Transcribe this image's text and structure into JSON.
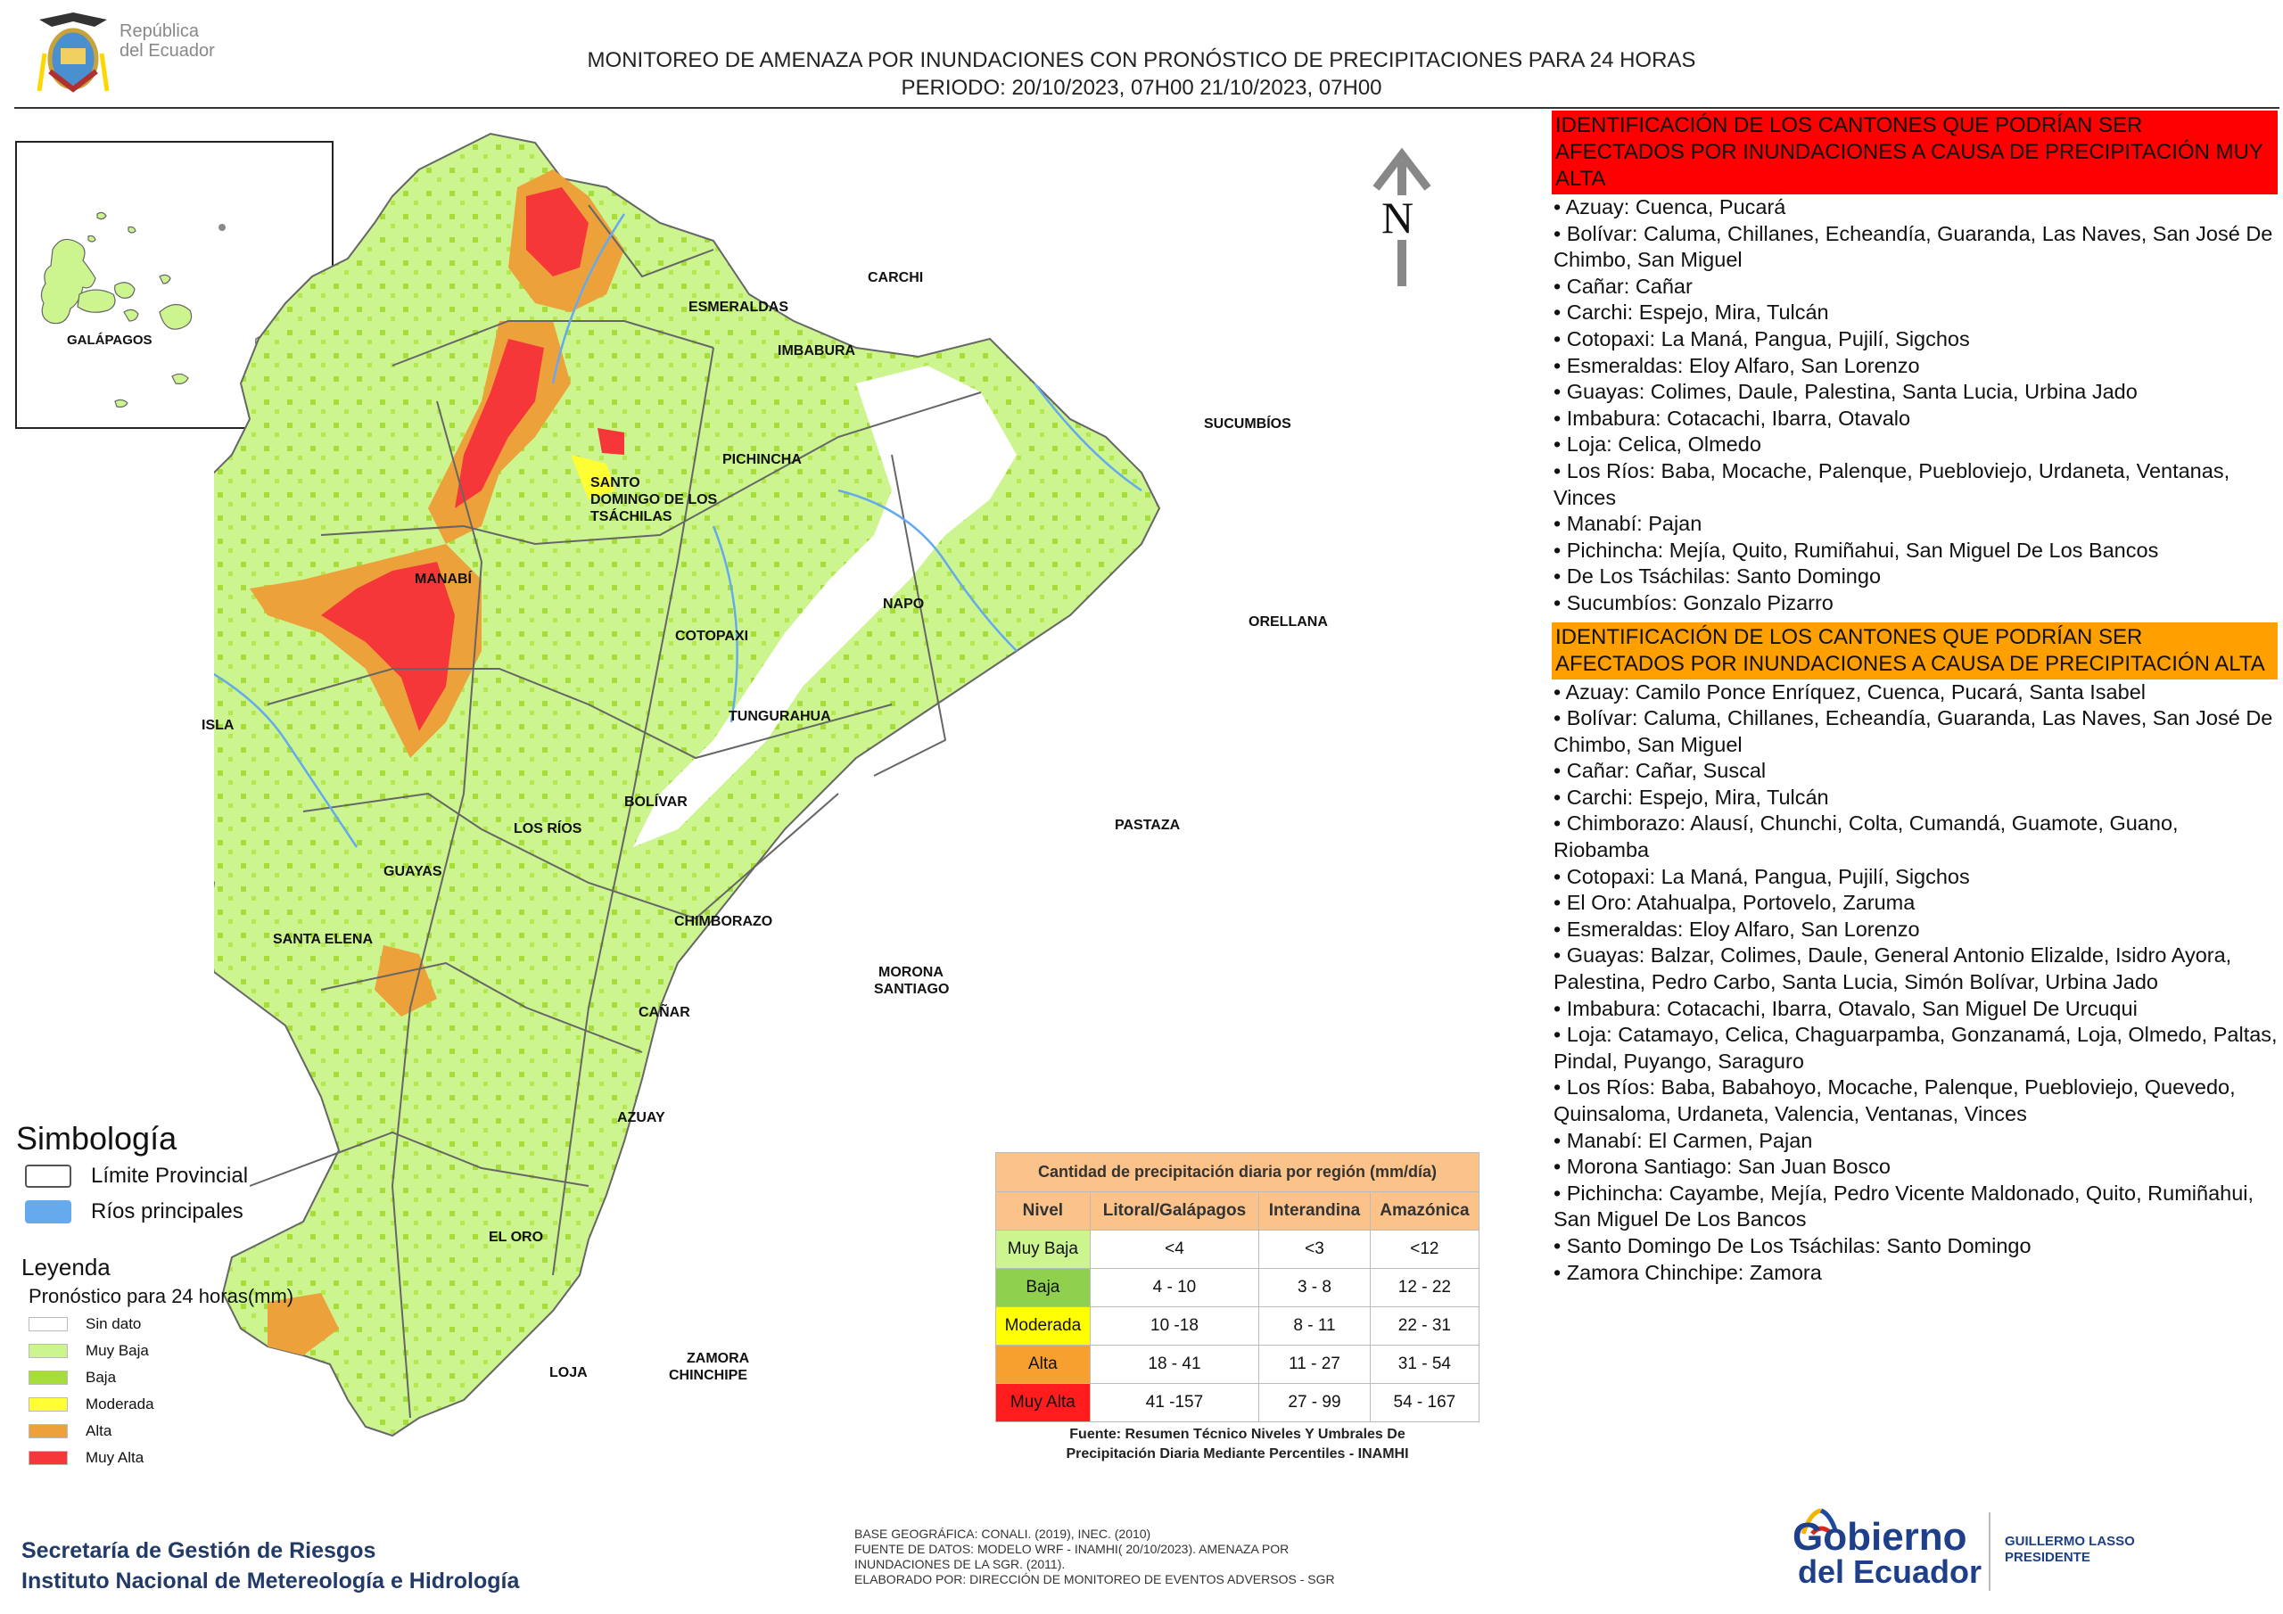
{
  "header": {
    "logo_text_line1": "República",
    "logo_text_line2": "del Ecuador",
    "title": "MONITOREO DE AMENAZA POR INUNDACIONES  CON PRONÓSTICO DE  PRECIPITACIONES PARA 24 HORAS",
    "period": "PERIODO: 20/10/2023, 07H00 21/10/2023, 07H00"
  },
  "map": {
    "north_label": "N",
    "inset_label": "GALÁPAGOS",
    "province_labels": {
      "carchi": "CARCHI",
      "esmeraldas": "ESMERALDAS",
      "imbabura": "IMBABURA",
      "sucumbios": "SUCUMBÍOS",
      "pichincha": "PICHINCHA",
      "santo_domingo_1": "SANTO",
      "santo_domingo_2": "DOMINGO DE LOS",
      "santo_domingo_3": "TSÁCHILAS",
      "manabi": "MANABÍ",
      "napo": "NAPO",
      "orellana": "ORELLANA",
      "cotopaxi": "COTOPAXI",
      "isla": "ISLA",
      "tungurahua": "TUNGURAHUA",
      "bolivar": "BOLÍVAR",
      "los_rios": "LOS RÍOS",
      "pastaza": "PASTAZA",
      "guayas": "GUAYAS",
      "chimborazo": "CHIMBORAZO",
      "santa_elena": "SANTA ELENA",
      "morona_1": "MORONA",
      "morona_2": "SANTIAGO",
      "canar": "CAÑAR",
      "azuay": "AZUAY",
      "el_oro": "EL ORO",
      "loja": "LOJA",
      "zamora_1": "ZAMORA",
      "zamora_2": "CHINCHIPE"
    },
    "colors": {
      "sin_dato": "#ffffff",
      "muy_baja": "#ccf58f",
      "baja": "#a6dd3a",
      "moderada": "#ffff33",
      "alta": "#eda13a",
      "muy_alta": "#f5373a",
      "rios": "#66aaee",
      "border": "#666666"
    }
  },
  "panel": {
    "muy_alta_header": "IDENTIFICACIÓN DE LOS CANTONES QUE PODRÍAN SER AFECTADOS POR INUNDACIONES  A CAUSA DE PRECIPITACIÓN MUY ALTA",
    "muy_alta_items": [
      "• Azuay: Cuenca, Pucará",
      "• Bolívar: Caluma, Chillanes, Echeandía, Guaranda, Las Naves, San José De Chimbo, San Miguel",
      "• Cañar: Cañar",
      "• Carchi: Espejo, Mira, Tulcán",
      "• Cotopaxi: La Maná, Pangua, Pujilí, Sigchos",
      "• Esmeraldas: Eloy Alfaro, San Lorenzo",
      "• Guayas: Colimes, Daule, Palestina, Santa Lucia, Urbina Jado",
      "• Imbabura: Cotacachi, Ibarra, Otavalo",
      "• Loja: Celica, Olmedo",
      "• Los Ríos: Baba, Mocache, Palenque, Puebloviejo, Urdaneta, Ventanas, Vinces",
      "• Manabí: Pajan",
      "• Pichincha: Mejía, Quito, Rumiñahui, San Miguel De Los Bancos",
      "•  De Los Tsáchilas: Santo Domingo",
      "• Sucumbíos: Gonzalo Pizarro"
    ],
    "alta_header": "IDENTIFICACIÓN DE LOS CANTONES QUE  PODRÍAN SER AFECTADOS POR INUNDACIONES  A CAUSA DE PRECIPITACIÓN ALTA",
    "alta_items": [
      "• Azuay: Camilo Ponce Enríquez, Cuenca, Pucará, Santa Isabel",
      "• Bolívar: Caluma, Chillanes, Echeandía, Guaranda, Las Naves, San José De Chimbo, San Miguel",
      "• Cañar: Cañar, Suscal",
      "• Carchi: Espejo, Mira, Tulcán",
      "• Chimborazo: Alausí, Chunchi, Colta, Cumandá, Guamote, Guano, Riobamba",
      "• Cotopaxi: La Maná, Pangua, Pujilí, Sigchos",
      "• El Oro: Atahualpa, Portovelo, Zaruma",
      "• Esmeraldas: Eloy Alfaro, San Lorenzo",
      "• Guayas: Balzar, Colimes, Daule, General Antonio Elizalde, Isidro Ayora, Palestina, Pedro Carbo, Santa Lucia, Simón Bolívar, Urbina Jado",
      "• Imbabura: Cotacachi, Ibarra, Otavalo, San Miguel De Urcuqui",
      "• Loja: Catamayo, Celica, Chaguarpamba, Gonzanamá, Loja, Olmedo, Paltas, Pindal, Puyango, Saraguro",
      "• Los Ríos: Baba, Babahoyo, Mocache, Palenque, Puebloviejo, Quevedo, Quinsaloma, Urdaneta, Valencia, Ventanas, Vinces",
      "• Manabí: El Carmen, Pajan",
      "• Morona Santiago: San Juan Bosco",
      "• Pichincha: Cayambe, Mejía, Pedro Vicente Maldonado, Quito, Rumiñahui, San Miguel De Los Bancos",
      "• Santo Domingo De Los Tsáchilas: Santo Domingo",
      "• Zamora Chinchipe: Zamora"
    ]
  },
  "simbologia": {
    "title": "Simbología",
    "limite": "Límite Provincial",
    "rios": "Ríos principales"
  },
  "leyenda": {
    "title": "Leyenda",
    "subtitle": "Pronóstico para 24 horas(mm)",
    "items": [
      "Sin dato",
      "Muy Baja",
      "Baja",
      "Moderada",
      "Alta",
      "Muy Alta"
    ]
  },
  "table": {
    "title": "Cantidad de precipitación diaria por región (mm/día)",
    "headers": [
      "Nivel",
      "Litoral/Galápagos",
      "Interandina",
      "Amazónica"
    ],
    "rows": [
      {
        "nivel": "Muy Baja",
        "litoral": "<4",
        "interandina": "<3",
        "amazonica": "<12",
        "color": "#ccf58f"
      },
      {
        "nivel": "Baja",
        "litoral": "4 - 10",
        "interandina": "3 - 8",
        "amazonica": "12 - 22",
        "color": "#8fd14f"
      },
      {
        "nivel": "Moderada",
        "litoral": "10 -18",
        "interandina": "8 - 11",
        "amazonica": "22 - 31",
        "color": "#ffff00"
      },
      {
        "nivel": "Alta",
        "litoral": "18 - 41",
        "interandina": "11 - 27",
        "amazonica": "31 - 54",
        "color": "#f7a030"
      },
      {
        "nivel": "Muy Alta",
        "litoral": "41 -157",
        "interandina": "27 - 99",
        "amazonica": "54 - 167",
        "color": "#ff1c1c"
      }
    ],
    "source_line1": "Fuente: Resumen Técnico Niveles Y Umbrales De",
    "source_line2": "Precipitación Diaria Mediante Percentiles - INAMHI"
  },
  "footer": {
    "credit1": "Secretaría de Gestión de Riesgos",
    "credit2": "Instituto Nacional de Metereología e Hidrología",
    "note1": "BASE GEOGRÁFICA: CONALI. (2019), INEC. (2010)",
    "note2": "FUENTE DE DATOS: MODELO WRF - INAMHI( 20/10/2023).  AMENAZA POR",
    "note3": "INUNDACIONES DE LA SGR. (2011).",
    "note4": "ELABORADO POR: DIRECCIÓN DE MONITOREO DE EVENTOS ADVERSOS - SGR",
    "gob_line1": "Gobierno",
    "gob_line2": "del Ecuador",
    "president_line1": "GUILLERMO LASSO",
    "president_line2": "PRESIDENTE"
  }
}
